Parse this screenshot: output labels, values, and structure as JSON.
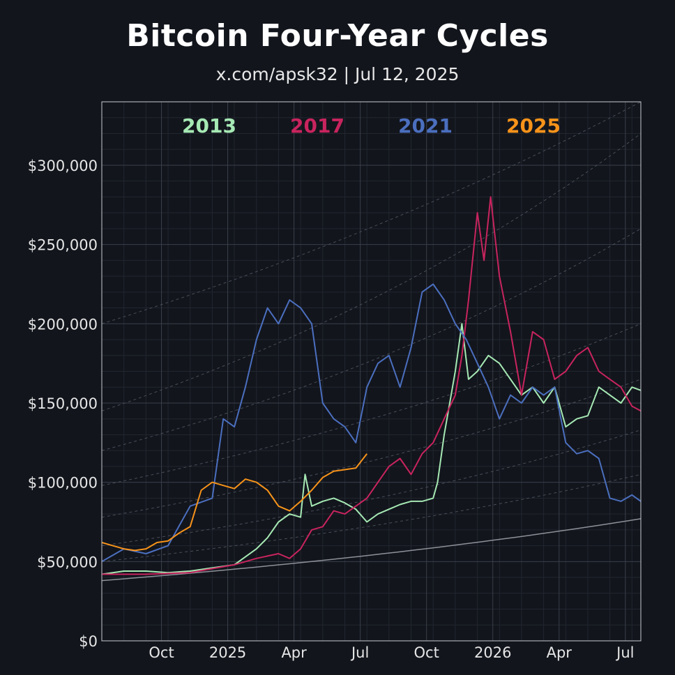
{
  "header": {
    "title": "Bitcoin Four-Year Cycles",
    "subtitle": "x.com/apsk32 | Jul 12, 2025"
  },
  "chart_data": {
    "type": "line",
    "title": "Bitcoin Four-Year Cycles",
    "subtitle": "x.com/apsk32 | Jul 12, 2025",
    "xlabel": "",
    "ylabel": "",
    "x_unit": "months since Jul 2024",
    "xlim": [
      0,
      24.4
    ],
    "ylim": [
      0,
      340000
    ],
    "x_ticks": [
      {
        "x": 2.7,
        "label": "Oct"
      },
      {
        "x": 5.7,
        "label": "2025"
      },
      {
        "x": 8.7,
        "label": "Apr"
      },
      {
        "x": 11.7,
        "label": "Jul"
      },
      {
        "x": 14.7,
        "label": "Oct"
      },
      {
        "x": 17.7,
        "label": "2026"
      },
      {
        "x": 20.7,
        "label": "Apr"
      },
      {
        "x": 23.7,
        "label": "Jul"
      }
    ],
    "y_ticks": [
      {
        "y": 0,
        "label": "$0"
      },
      {
        "y": 50000,
        "label": "$50,000"
      },
      {
        "y": 100000,
        "label": "$100,000"
      },
      {
        "y": 150000,
        "label": "$150,000"
      },
      {
        "y": 200000,
        "label": "$200,000"
      },
      {
        "y": 250000,
        "label": "$250,000"
      },
      {
        "y": 300000,
        "label": "$300,000"
      }
    ],
    "grid": true,
    "legend_position": "top",
    "series": [
      {
        "name": "2013",
        "color": "#a6e9b4",
        "x": [
          0,
          1,
          2,
          3,
          4,
          5,
          6,
          7,
          7.5,
          8,
          8.5,
          9,
          9.2,
          9.5,
          10,
          10.5,
          11,
          11.5,
          12,
          12.5,
          13,
          13.5,
          14,
          14.5,
          15,
          15.2,
          15.5,
          16,
          16.3,
          16.6,
          17,
          17.5,
          18,
          18.5,
          19,
          19.5,
          20,
          20.5,
          21,
          21.5,
          22,
          22.5,
          23,
          23.5,
          24,
          24.4
        ],
        "y": [
          42000,
          44000,
          44000,
          43000,
          44000,
          46000,
          48000,
          58000,
          65000,
          75000,
          80000,
          78000,
          105000,
          85000,
          88000,
          90000,
          87000,
          83000,
          75000,
          80000,
          83000,
          86000,
          88000,
          88000,
          90000,
          100000,
          130000,
          170000,
          200000,
          165000,
          170000,
          180000,
          175000,
          165000,
          155000,
          160000,
          150000,
          160000,
          135000,
          140000,
          142000,
          160000,
          155000,
          150000,
          160000,
          158000
        ]
      },
      {
        "name": "2017",
        "color": "#c8245e",
        "x": [
          0,
          2,
          4,
          6,
          7,
          8,
          8.5,
          9,
          9.5,
          10,
          10.5,
          11,
          11.5,
          12,
          12.5,
          13,
          13.5,
          14,
          14.5,
          15,
          15.5,
          16,
          16.3,
          16.6,
          17,
          17.3,
          17.6,
          18,
          18.5,
          19,
          19.5,
          20,
          20.5,
          21,
          21.5,
          22,
          22.5,
          23,
          23.5,
          24,
          24.4
        ],
        "y": [
          42000,
          42000,
          43000,
          48000,
          52000,
          55000,
          52000,
          58000,
          70000,
          72000,
          82000,
          80000,
          85000,
          90000,
          100000,
          110000,
          115000,
          105000,
          118000,
          125000,
          140000,
          155000,
          180000,
          215000,
          270000,
          240000,
          280000,
          230000,
          195000,
          155000,
          195000,
          190000,
          165000,
          170000,
          180000,
          185000,
          170000,
          165000,
          160000,
          148000,
          145000
        ]
      },
      {
        "name": "2021",
        "color": "#4b6fbf",
        "x": [
          0,
          1,
          2,
          3,
          4,
          5,
          5.5,
          6,
          6.5,
          7,
          7.5,
          8,
          8.5,
          9,
          9.5,
          10,
          10.5,
          11,
          11.5,
          12,
          12.5,
          13,
          13.5,
          14,
          14.5,
          15,
          15.5,
          16,
          16.5,
          17,
          17.5,
          18,
          18.5,
          19,
          19.5,
          20,
          20.5,
          21,
          21.5,
          22,
          22.5,
          23,
          23.5,
          24,
          24.4
        ],
        "y": [
          50000,
          58000,
          55000,
          60000,
          85000,
          90000,
          140000,
          135000,
          160000,
          190000,
          210000,
          200000,
          215000,
          210000,
          200000,
          150000,
          140000,
          135000,
          125000,
          160000,
          175000,
          180000,
          160000,
          185000,
          220000,
          225000,
          215000,
          200000,
          190000,
          175000,
          160000,
          140000,
          155000,
          150000,
          160000,
          155000,
          160000,
          125000,
          118000,
          120000,
          115000,
          90000,
          88000,
          92000,
          88000
        ]
      },
      {
        "name": "2025",
        "color": "#f7931a",
        "x": [
          0,
          0.5,
          1,
          1.5,
          2,
          2.5,
          3,
          3.5,
          4,
          4.5,
          5,
          5.5,
          6,
          6.5,
          7,
          7.5,
          8,
          8.5,
          9,
          9.5,
          10,
          10.5,
          11,
          11.5,
          12
        ],
        "y": [
          62000,
          60000,
          58000,
          57000,
          58000,
          62000,
          63000,
          68000,
          72000,
          95000,
          100000,
          98000,
          96000,
          102000,
          100000,
          95000,
          85000,
          82000,
          88000,
          95000,
          103000,
          107000,
          108000,
          109000,
          118000
        ]
      }
    ],
    "trend_lines": [
      {
        "y_start": 38000,
        "y_end": 77000,
        "style": "solid"
      },
      {
        "y_start": 50000,
        "y_end": 105000,
        "style": "dashed"
      },
      {
        "y_start": 60000,
        "y_end": 133000,
        "style": "dashed"
      },
      {
        "y_start": 78000,
        "y_end": 165000,
        "style": "dashed"
      },
      {
        "y_start": 98000,
        "y_end": 200000,
        "style": "dashed"
      },
      {
        "y_start": 120000,
        "y_end": 260000,
        "style": "dashed"
      },
      {
        "y_start": 145000,
        "y_end": 320000,
        "style": "dashed"
      },
      {
        "y_start": 200000,
        "y_end": 340000,
        "style": "dashed"
      }
    ]
  }
}
